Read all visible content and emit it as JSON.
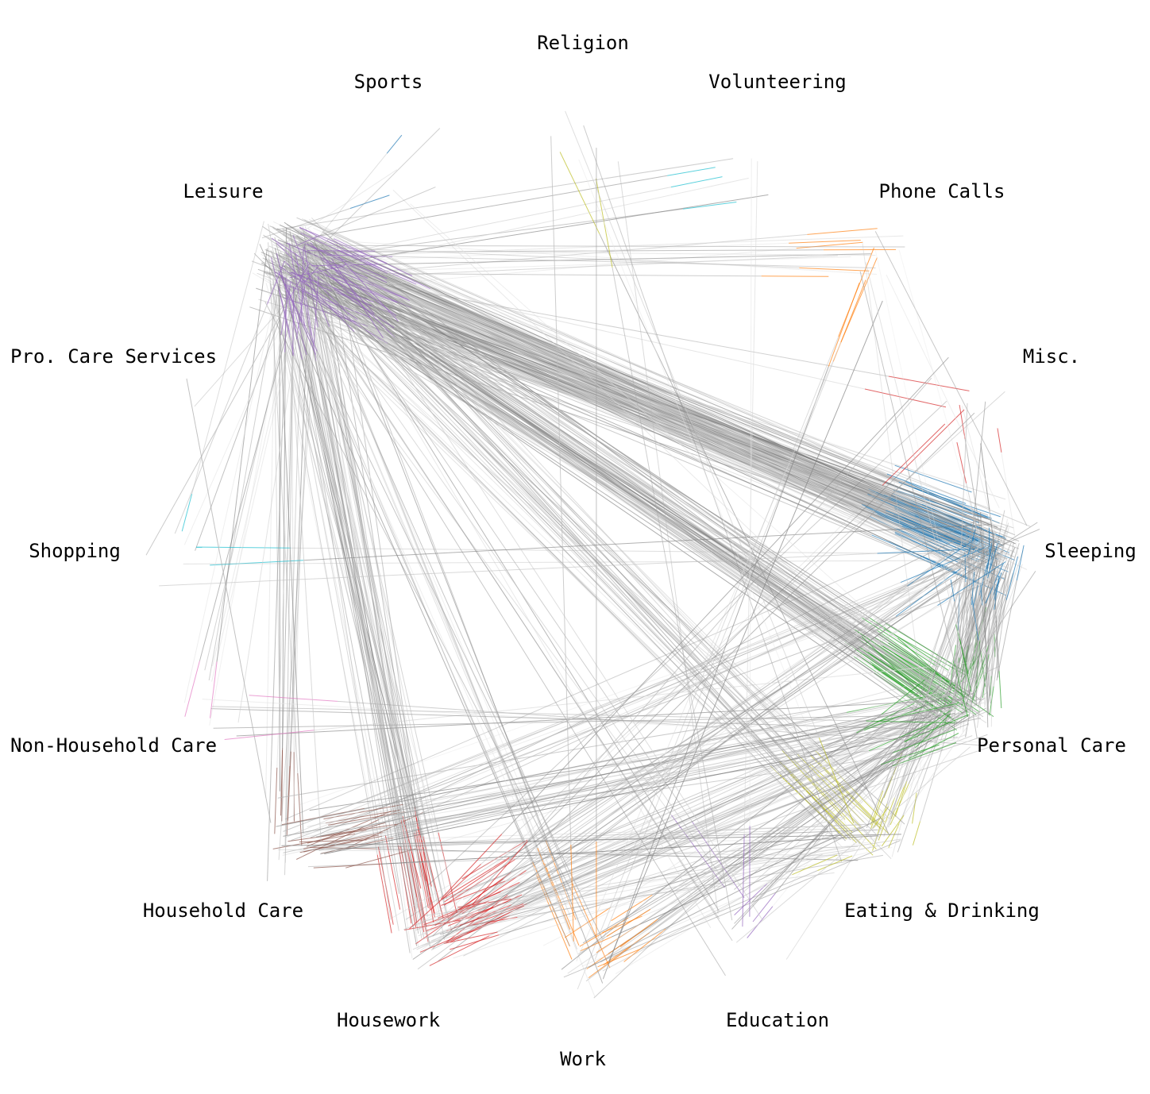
{
  "chart_data": {
    "type": "network",
    "title": "",
    "categories": [
      {
        "name": "Religion",
        "color": "#bcbd22"
      },
      {
        "name": "Volunteering",
        "color": "#17becf"
      },
      {
        "name": "Phone Calls",
        "color": "#ff7f0e"
      },
      {
        "name": "Misc.",
        "color": "#d62728"
      },
      {
        "name": "Sleeping",
        "color": "#1f77b4"
      },
      {
        "name": "Personal Care",
        "color": "#2ca02c"
      },
      {
        "name": "Eating & Drinking",
        "color": "#bcbd22"
      },
      {
        "name": "Education",
        "color": "#9467bd"
      },
      {
        "name": "Work",
        "color": "#ff7f0e"
      },
      {
        "name": "Housework",
        "color": "#d62728"
      },
      {
        "name": "Household Care",
        "color": "#8c564b"
      },
      {
        "name": "Non-Household Care",
        "color": "#e377c2"
      },
      {
        "name": "Shopping",
        "color": "#17becf"
      },
      {
        "name": "Pro. Care Services",
        "color": "#7f7f7f"
      },
      {
        "name": "Leisure",
        "color": "#9467bd"
      },
      {
        "name": "Sports",
        "color": "#1f77b4"
      }
    ],
    "neutral_color": "#8c8c8c",
    "transitions": [
      {
        "from": "Leisure",
        "to": "Sleeping",
        "count": 150
      },
      {
        "from": "Leisure",
        "to": "Personal Care",
        "count": 60
      },
      {
        "from": "Leisure",
        "to": "Housework",
        "count": 40
      },
      {
        "from": "Leisure",
        "to": "Eating & Drinking",
        "count": 25
      },
      {
        "from": "Leisure",
        "to": "Household Care",
        "count": 12
      },
      {
        "from": "Leisure",
        "to": "Work",
        "count": 10
      },
      {
        "from": "Leisure",
        "to": "Phone Calls",
        "count": 8
      },
      {
        "from": "Leisure",
        "to": "Non-Household Care",
        "count": 6
      },
      {
        "from": "Leisure",
        "to": "Education",
        "count": 5
      },
      {
        "from": "Leisure",
        "to": "Sports",
        "count": 3
      },
      {
        "from": "Leisure",
        "to": "Shopping",
        "count": 3
      },
      {
        "from": "Leisure",
        "to": "Volunteering",
        "count": 3
      },
      {
        "from": "Leisure",
        "to": "Misc.",
        "count": 2
      },
      {
        "from": "Sleeping",
        "to": "Personal Care",
        "count": 50
      },
      {
        "from": "Sleeping",
        "to": "Leisure",
        "count": 30
      },
      {
        "from": "Sleeping",
        "to": "Eating & Drinking",
        "count": 15
      },
      {
        "from": "Sleeping",
        "to": "Housework",
        "count": 10
      },
      {
        "from": "Sleeping",
        "to": "Household Care",
        "count": 8
      },
      {
        "from": "Sleeping",
        "to": "Misc.",
        "count": 5
      },
      {
        "from": "Sleeping",
        "to": "Shopping",
        "count": 2
      },
      {
        "from": "Personal Care",
        "to": "Sleeping",
        "count": 40
      },
      {
        "from": "Personal Care",
        "to": "Housework",
        "count": 25
      },
      {
        "from": "Personal Care",
        "to": "Household Care",
        "count": 20
      },
      {
        "from": "Personal Care",
        "to": "Leisure",
        "count": 15
      },
      {
        "from": "Personal Care",
        "to": "Work",
        "count": 15
      },
      {
        "from": "Personal Care",
        "to": "Education",
        "count": 8
      },
      {
        "from": "Personal Care",
        "to": "Eating & Drinking",
        "count": 8
      },
      {
        "from": "Personal Care",
        "to": "Non-Household Care",
        "count": 5
      },
      {
        "from": "Eating & Drinking",
        "to": "Household Care",
        "count": 10
      },
      {
        "from": "Eating & Drinking",
        "to": "Housework",
        "count": 8
      },
      {
        "from": "Eating & Drinking",
        "to": "Leisure",
        "count": 8
      },
      {
        "from": "Eating & Drinking",
        "to": "Work",
        "count": 5
      },
      {
        "from": "Eating & Drinking",
        "to": "Religion",
        "count": 2
      },
      {
        "from": "Housework",
        "to": "Leisure",
        "count": 15
      },
      {
        "from": "Housework",
        "to": "Personal Care",
        "count": 10
      },
      {
        "from": "Housework",
        "to": "Sleeping",
        "count": 8
      },
      {
        "from": "Housework",
        "to": "Misc.",
        "count": 4
      },
      {
        "from": "Housework",
        "to": "Eating & Drinking",
        "count": 4
      },
      {
        "from": "Household Care",
        "to": "Leisure",
        "count": 6
      },
      {
        "from": "Household Care",
        "to": "Sleeping",
        "count": 5
      },
      {
        "from": "Household Care",
        "to": "Personal Care",
        "count": 6
      },
      {
        "from": "Work",
        "to": "Phone Calls",
        "count": 5
      },
      {
        "from": "Work",
        "to": "Leisure",
        "count": 5
      },
      {
        "from": "Work",
        "to": "Eating & Drinking",
        "count": 3
      },
      {
        "from": "Work",
        "to": "Personal Care",
        "count": 4
      },
      {
        "from": "Phone Calls",
        "to": "Leisure",
        "count": 6
      },
      {
        "from": "Phone Calls",
        "to": "Personal Care",
        "count": 4
      },
      {
        "from": "Phone Calls",
        "to": "Sleeping",
        "count": 3
      },
      {
        "from": "Education",
        "to": "Leisure",
        "count": 4
      },
      {
        "from": "Education",
        "to": "Personal Care",
        "count": 3
      },
      {
        "from": "Education",
        "to": "Religion",
        "count": 2
      },
      {
        "from": "Volunteering",
        "to": "Leisure",
        "count": 3
      },
      {
        "from": "Volunteering",
        "to": "Education",
        "count": 2
      },
      {
        "from": "Religion",
        "to": "Eating & Drinking",
        "count": 2
      },
      {
        "from": "Religion",
        "to": "Work",
        "count": 2
      },
      {
        "from": "Sports",
        "to": "Personal Care",
        "count": 2
      },
      {
        "from": "Sports",
        "to": "Leisure",
        "count": 2
      },
      {
        "from": "Shopping",
        "to": "Sleeping",
        "count": 2
      },
      {
        "from": "Shopping",
        "to": "Leisure",
        "count": 2
      },
      {
        "from": "Non-Household Care",
        "to": "Leisure",
        "count": 3
      },
      {
        "from": "Non-Household Care",
        "to": "Personal Care",
        "count": 2
      },
      {
        "from": "Misc.",
        "to": "Housework",
        "count": 3
      },
      {
        "from": "Misc.",
        "to": "Personal Care",
        "count": 2
      },
      {
        "from": "Pro. Care Services",
        "to": "Leisure",
        "count": 1
      },
      {
        "from": "Pro. Care Services",
        "to": "Household Care",
        "count": 1
      }
    ]
  }
}
